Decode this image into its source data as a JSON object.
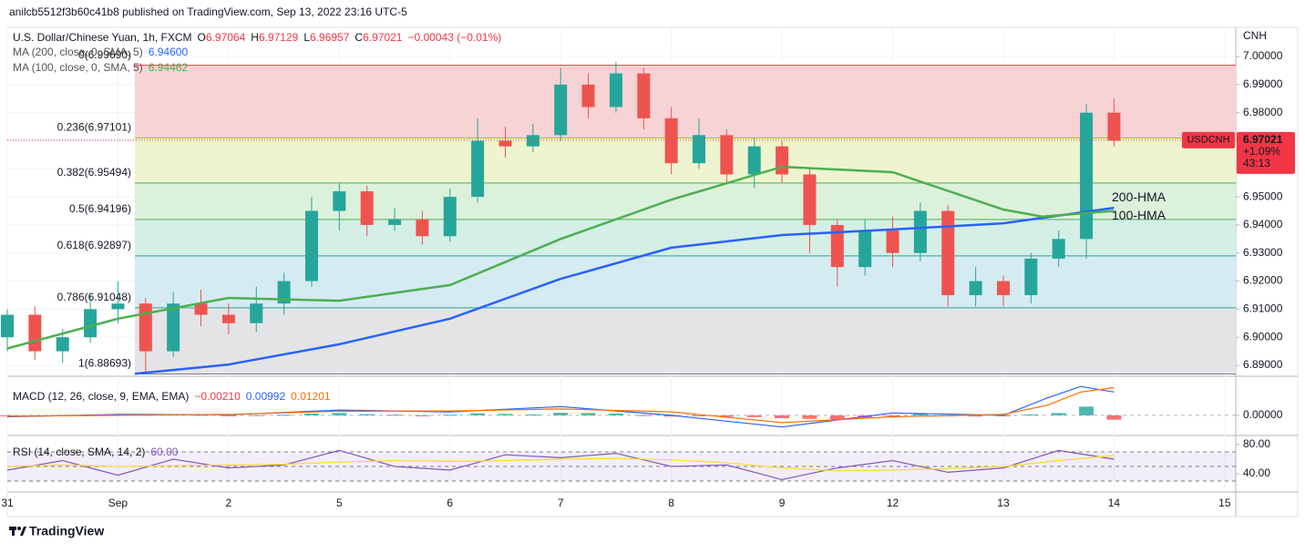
{
  "header": {
    "publisher": "anilcb5512f3b60c41b8 published on TradingView.com, Sep 13, 2022 23:16 UTC-5",
    "brand": "TradingView"
  },
  "chart_data": [
    {
      "type": "candlestick",
      "title": "U.S. Dollar/Chinese Yuan, 1h, FXCM",
      "quote": [
        {
          "label": "O",
          "value": 6.97064
        },
        {
          "label": "H",
          "value": 6.97129
        },
        {
          "label": "L",
          "value": 6.96957
        },
        {
          "label": "C",
          "value": 6.97021
        }
      ],
      "change": "−0.00043 (−0.01%)",
      "quote_color": "#f23645",
      "axis_label": "CNH",
      "xlim": [
        0,
        11.1
      ],
      "xticks": [
        {
          "value": 0,
          "label": "31"
        },
        {
          "value": 1,
          "label": "Sep"
        },
        {
          "value": 2,
          "label": "2"
        },
        {
          "value": 3,
          "label": "5"
        },
        {
          "value": 4,
          "label": "6"
        },
        {
          "value": 5,
          "label": "7"
        },
        {
          "value": 6,
          "label": "8"
        },
        {
          "value": 7,
          "label": "9"
        },
        {
          "value": 8,
          "label": "12"
        },
        {
          "value": 9,
          "label": "13"
        },
        {
          "value": 10,
          "label": "14"
        },
        {
          "value": 11,
          "label": "15"
        }
      ],
      "ylim": [
        6.8861,
        7.0104
      ],
      "yticks": [
        {
          "value": 6.89,
          "label": "6.89000"
        },
        {
          "value": 6.9,
          "label": "6.90000"
        },
        {
          "value": 6.91,
          "label": "6.91000"
        },
        {
          "value": 6.92,
          "label": "6.92000"
        },
        {
          "value": 6.93,
          "label": "6.93000"
        },
        {
          "value": 6.94,
          "label": "6.94000"
        },
        {
          "value": 6.95,
          "label": "6.95000"
        },
        {
          "value": 6.96,
          "label": "6.96000"
        },
        {
          "value": 6.97,
          "label": "6.97000"
        },
        {
          "value": 6.98,
          "label": "6.98000"
        },
        {
          "value": 6.99,
          "label": "6.99000"
        },
        {
          "value": 7.0,
          "label": "7.00000"
        }
      ],
      "grid": true,
      "colors": {
        "up": "#26a69a",
        "down": "#ef5350"
      },
      "x": [
        0,
        0.25,
        0.5,
        0.75,
        1,
        1.25,
        1.5,
        1.75,
        2,
        2.25,
        2.5,
        2.75,
        3,
        3.25,
        3.5,
        3.75,
        4,
        4.25,
        4.5,
        4.75,
        5,
        5.25,
        5.5,
        5.75,
        6,
        6.25,
        6.5,
        6.75,
        7,
        7.25,
        7.5,
        7.75,
        8,
        8.25,
        8.5,
        8.75,
        9,
        9.25,
        9.5,
        9.75,
        10
      ],
      "open": [
        6.9,
        6.908,
        6.895,
        6.9,
        6.91,
        6.912,
        6.895,
        6.912,
        6.908,
        6.905,
        6.912,
        6.92,
        6.945,
        6.952,
        6.94,
        6.942,
        6.936,
        6.95,
        6.97,
        6.968,
        6.972,
        6.99,
        6.982,
        6.994,
        6.978,
        6.962,
        6.972,
        6.958,
        6.968,
        6.958,
        6.94,
        6.925,
        6.938,
        6.93,
        6.945,
        6.915,
        6.92,
        6.915,
        6.928,
        6.935,
        6.98
      ],
      "high": [
        6.91,
        6.911,
        6.903,
        6.915,
        6.92,
        6.914,
        6.916,
        6.917,
        6.912,
        6.918,
        6.923,
        6.95,
        6.955,
        6.954,
        6.946,
        6.945,
        6.953,
        6.978,
        6.975,
        6.976,
        6.996,
        6.994,
        6.998,
        6.996,
        6.982,
        6.978,
        6.974,
        6.971,
        6.97,
        6.96,
        6.942,
        6.942,
        6.943,
        6.948,
        6.947,
        6.925,
        6.922,
        6.93,
        6.938,
        6.983,
        6.985
      ],
      "low": [
        6.895,
        6.892,
        6.891,
        6.898,
        6.905,
        6.887,
        6.893,
        6.904,
        6.901,
        6.902,
        6.908,
        6.918,
        6.938,
        6.936,
        6.938,
        6.933,
        6.934,
        6.948,
        6.964,
        6.966,
        6.97,
        6.978,
        6.98,
        6.974,
        6.958,
        6.96,
        6.955,
        6.953,
        6.955,
        6.93,
        6.918,
        6.922,
        6.925,
        6.927,
        6.911,
        6.911,
        6.911,
        6.912,
        6.925,
        6.928,
        6.968
      ],
      "close": [
        6.908,
        6.895,
        6.9,
        6.91,
        6.912,
        6.895,
        6.912,
        6.908,
        6.905,
        6.912,
        6.92,
        6.945,
        6.952,
        6.94,
        6.942,
        6.936,
        6.95,
        6.97,
        6.968,
        6.972,
        6.99,
        6.982,
        6.994,
        6.978,
        6.962,
        6.972,
        6.958,
        6.968,
        6.958,
        6.94,
        6.925,
        6.938,
        6.93,
        6.945,
        6.915,
        6.92,
        6.915,
        6.928,
        6.935,
        6.98,
        6.97
      ],
      "series": [
        {
          "name": "MA (200, close, 0, SMA, 5)",
          "legend_value": "6.94600",
          "annotation": "200-HMA",
          "color": "#2962ff",
          "x": [
            1.153,
            2,
            3,
            4,
            5,
            6,
            7,
            8,
            9,
            10
          ],
          "values": [
            6.887,
            6.8903,
            6.8975,
            6.9066,
            6.9208,
            6.9319,
            6.9364,
            6.9384,
            6.9406,
            6.9461
          ]
        },
        {
          "name": "MA (100, close, 0, SMA, 5)",
          "legend_value": "6.94462",
          "annotation": "100-HMA",
          "color": "#4caf50",
          "x": [
            0,
            1,
            2,
            3,
            4,
            5,
            6,
            7,
            8,
            9,
            9.35,
            10
          ],
          "values": [
            6.896,
            6.9066,
            6.914,
            6.913,
            6.9186,
            6.935,
            6.949,
            6.9607,
            6.9588,
            6.9455,
            6.943,
            6.945
          ]
        }
      ],
      "fib_levels": [
        {
          "value": 6.9969,
          "label": "0(6.99690)"
        },
        {
          "value": 6.97101,
          "label": "0.236(6.97101)"
        },
        {
          "value": 6.95494,
          "label": "0.382(6.95494)"
        },
        {
          "value": 6.94196,
          "label": "0.5(6.94196)"
        },
        {
          "value": 6.92897,
          "label": "0.618(6.92897)"
        },
        {
          "value": 6.91048,
          "label": "0.786(6.91048)"
        },
        {
          "value": 6.88693,
          "label": "1(6.88693)"
        }
      ],
      "fib_line_colors": [
        "#f23645",
        "#9fb81e",
        "#4caf50",
        "#4caf50",
        "#26a69a",
        "#26a69a",
        "#787b86"
      ],
      "fib_zone_colors": [
        "#f8d3d5",
        "#eef4cf",
        "#dcf1dc",
        "#d3efe6",
        "#d5ebf2",
        "#e4e4e6"
      ],
      "last_price": {
        "value": 6.97021,
        "label": "6.97021",
        "symbol": "USDCNH",
        "change": "+1.09%",
        "countdown": "43:13",
        "color": "#f23645"
      }
    },
    {
      "type": "macd",
      "title": "MACD (12, 26, close, 9, EMA, EMA)",
      "legend_values": [
        "−0.00210",
        "0.00992",
        "0.01201"
      ],
      "legend_colors": [
        "#f23645",
        "#2962ff",
        "#ff6d00"
      ],
      "ylim": [
        -0.0069,
        0.0134
      ],
      "yticks": [
        {
          "value": 0,
          "label": "0.00000"
        }
      ],
      "histogram": {
        "colors": {
          "up": "#26a69a",
          "down": "#ef5350"
        },
        "values": [
          -0.0003,
          -0.0002,
          0.0001,
          0.0003,
          0.0003,
          0.0002,
          0.0004,
          0.0002,
          -0.0001,
          0.0001,
          0.0002,
          0.0006,
          0.0008,
          0.0004,
          0.0002,
          -0.0002,
          0.0002,
          0.0007,
          0.0005,
          0.0003,
          0.0009,
          0.0008,
          0.0006,
          0.0001,
          -0.0004,
          -0.0003,
          -0.0005,
          -0.0006,
          -0.001,
          -0.0012,
          -0.0014,
          -0.0008,
          -0.0002,
          0.0006,
          -0.0001,
          -0.0004,
          -0.0002,
          0.0003,
          0.0008,
          0.003,
          -0.0015
        ]
      },
      "series": [
        {
          "color": "#2962ff",
          "x": [
            0,
            1,
            2,
            3,
            4,
            5,
            6,
            7,
            8,
            9,
            9.4,
            9.7,
            10
          ],
          "values": [
            -0.0005,
            0.0003,
            0.0002,
            0.0018,
            0.0012,
            0.003,
            0.0,
            -0.004,
            0.0008,
            0.0,
            0.006,
            0.0099,
            0.008
          ]
        },
        {
          "color": "#ff6d00",
          "x": [
            0,
            1,
            2,
            3,
            4,
            5,
            6,
            7,
            8,
            9,
            9.4,
            9.7,
            10
          ],
          "values": [
            -0.0003,
            0.0,
            0.0003,
            0.0014,
            0.0015,
            0.0022,
            0.0012,
            -0.0025,
            -0.0005,
            0.0003,
            0.0035,
            0.008,
            0.0095
          ]
        }
      ]
    },
    {
      "type": "rsi",
      "title": "RSI (14, close, SMA, 14, 2)",
      "legend_values": [
        "60.00"
      ],
      "legend_colors": [
        "#7e57c2"
      ],
      "ylim": [
        15,
        92.5
      ],
      "yticks": [
        {
          "value": 40,
          "label": "40.00"
        },
        {
          "value": 80,
          "label": "80.00"
        }
      ],
      "bands": [
        70,
        50,
        30
      ],
      "band_color": "#7e57c2",
      "series": [
        {
          "color": "#7e57c2",
          "x": [
            0,
            0.5,
            1,
            1.5,
            2,
            2.5,
            3,
            3.5,
            4,
            4.5,
            5,
            5.5,
            6,
            6.5,
            7,
            7.5,
            8,
            8.5,
            9,
            9.5,
            10
          ],
          "values": [
            45,
            58,
            38,
            60,
            48,
            52,
            72,
            50,
            45,
            66,
            62,
            68,
            50,
            52,
            32,
            48,
            58,
            42,
            48,
            72,
            60
          ]
        },
        {
          "color": "#fdd835",
          "x": [
            0,
            0.5,
            1,
            1.5,
            2,
            2.5,
            3,
            3.5,
            4,
            4.5,
            5,
            5.5,
            6,
            6.5,
            7,
            7.5,
            8,
            8.5,
            9,
            9.5,
            10
          ],
          "values": [
            50,
            52,
            50,
            51,
            52,
            53,
            56,
            58,
            57,
            58,
            60,
            61,
            59,
            55,
            48,
            44,
            45,
            47,
            50,
            58,
            65
          ]
        }
      ]
    }
  ]
}
